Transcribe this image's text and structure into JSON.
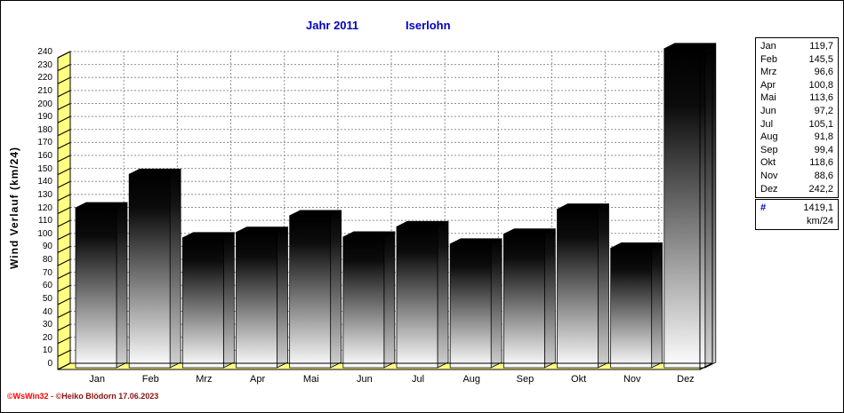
{
  "title": {
    "year": "Jahr  2011",
    "station": "Iserlohn"
  },
  "y_axis": {
    "label": "Wind Verlauf  (km/24)"
  },
  "footer": {
    "part1": "©WsWin32 -  ",
    "part2": "©Heiko Blödorn  17.06.2023"
  },
  "legend": {
    "rows": [
      {
        "label": "Jan",
        "value": "119,7"
      },
      {
        "label": "Feb",
        "value": "145,5"
      },
      {
        "label": "Mrz",
        "value": "96,6"
      },
      {
        "label": "Apr",
        "value": "100,8"
      },
      {
        "label": "Mai",
        "value": "113,6"
      },
      {
        "label": "Jun",
        "value": "97,2"
      },
      {
        "label": "Jul",
        "value": "105,1"
      },
      {
        "label": "Aug",
        "value": "91,8"
      },
      {
        "label": "Sep",
        "value": "99,4"
      },
      {
        "label": "Okt",
        "value": "118,6"
      },
      {
        "label": "Nov",
        "value": "88,6"
      },
      {
        "label": "Dez",
        "value": "242,2"
      }
    ],
    "total_symbol": "#",
    "total_value": "1419,1",
    "total_unit": "km/24"
  },
  "chart_data": {
    "type": "bar",
    "title": "Jahr 2011  Iserlohn",
    "ylabel": "Wind Verlauf (km/24)",
    "categories": [
      "Jan",
      "Feb",
      "Mrz",
      "Apr",
      "Mai",
      "Jun",
      "Jul",
      "Aug",
      "Sep",
      "Okt",
      "Nov",
      "Dez"
    ],
    "values": [
      119.7,
      145.5,
      96.6,
      100.8,
      113.6,
      97.2,
      105.1,
      91.8,
      99.4,
      118.6,
      88.6,
      242.2
    ],
    "total": 1419.1,
    "unit": "km/24",
    "ylim": [
      0,
      240
    ],
    "ytick_step": 10,
    "grid": true,
    "legend_position": "right",
    "style": "3d-gradient-bars"
  },
  "colors": {
    "title_blue": "#0000C0",
    "hash_blue": "#0000CC",
    "wall_yellow": "#FFFF80",
    "grid_gray": "#909090",
    "footer_red": "#FF0000",
    "footer_dark_red": "#881111",
    "bar_top": "#000000"
  }
}
